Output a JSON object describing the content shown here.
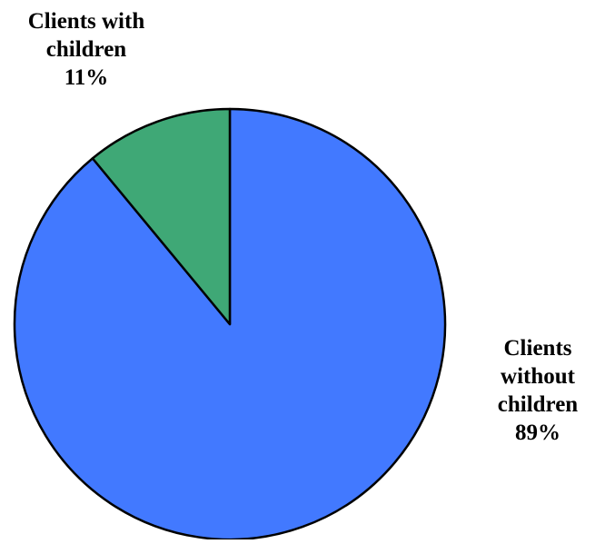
{
  "chart_data": {
    "type": "pie",
    "start_angle_deg": 0,
    "direction": "clockwise",
    "slices": [
      {
        "label_lines": [
          "Clients",
          "without",
          "children"
        ],
        "percent_label": "89%",
        "value": 89,
        "color": "#4279FF"
      },
      {
        "label_lines": [
          "Clients with",
          "children"
        ],
        "percent_label": "11%",
        "value": 11,
        "color": "#3FA876"
      }
    ]
  }
}
